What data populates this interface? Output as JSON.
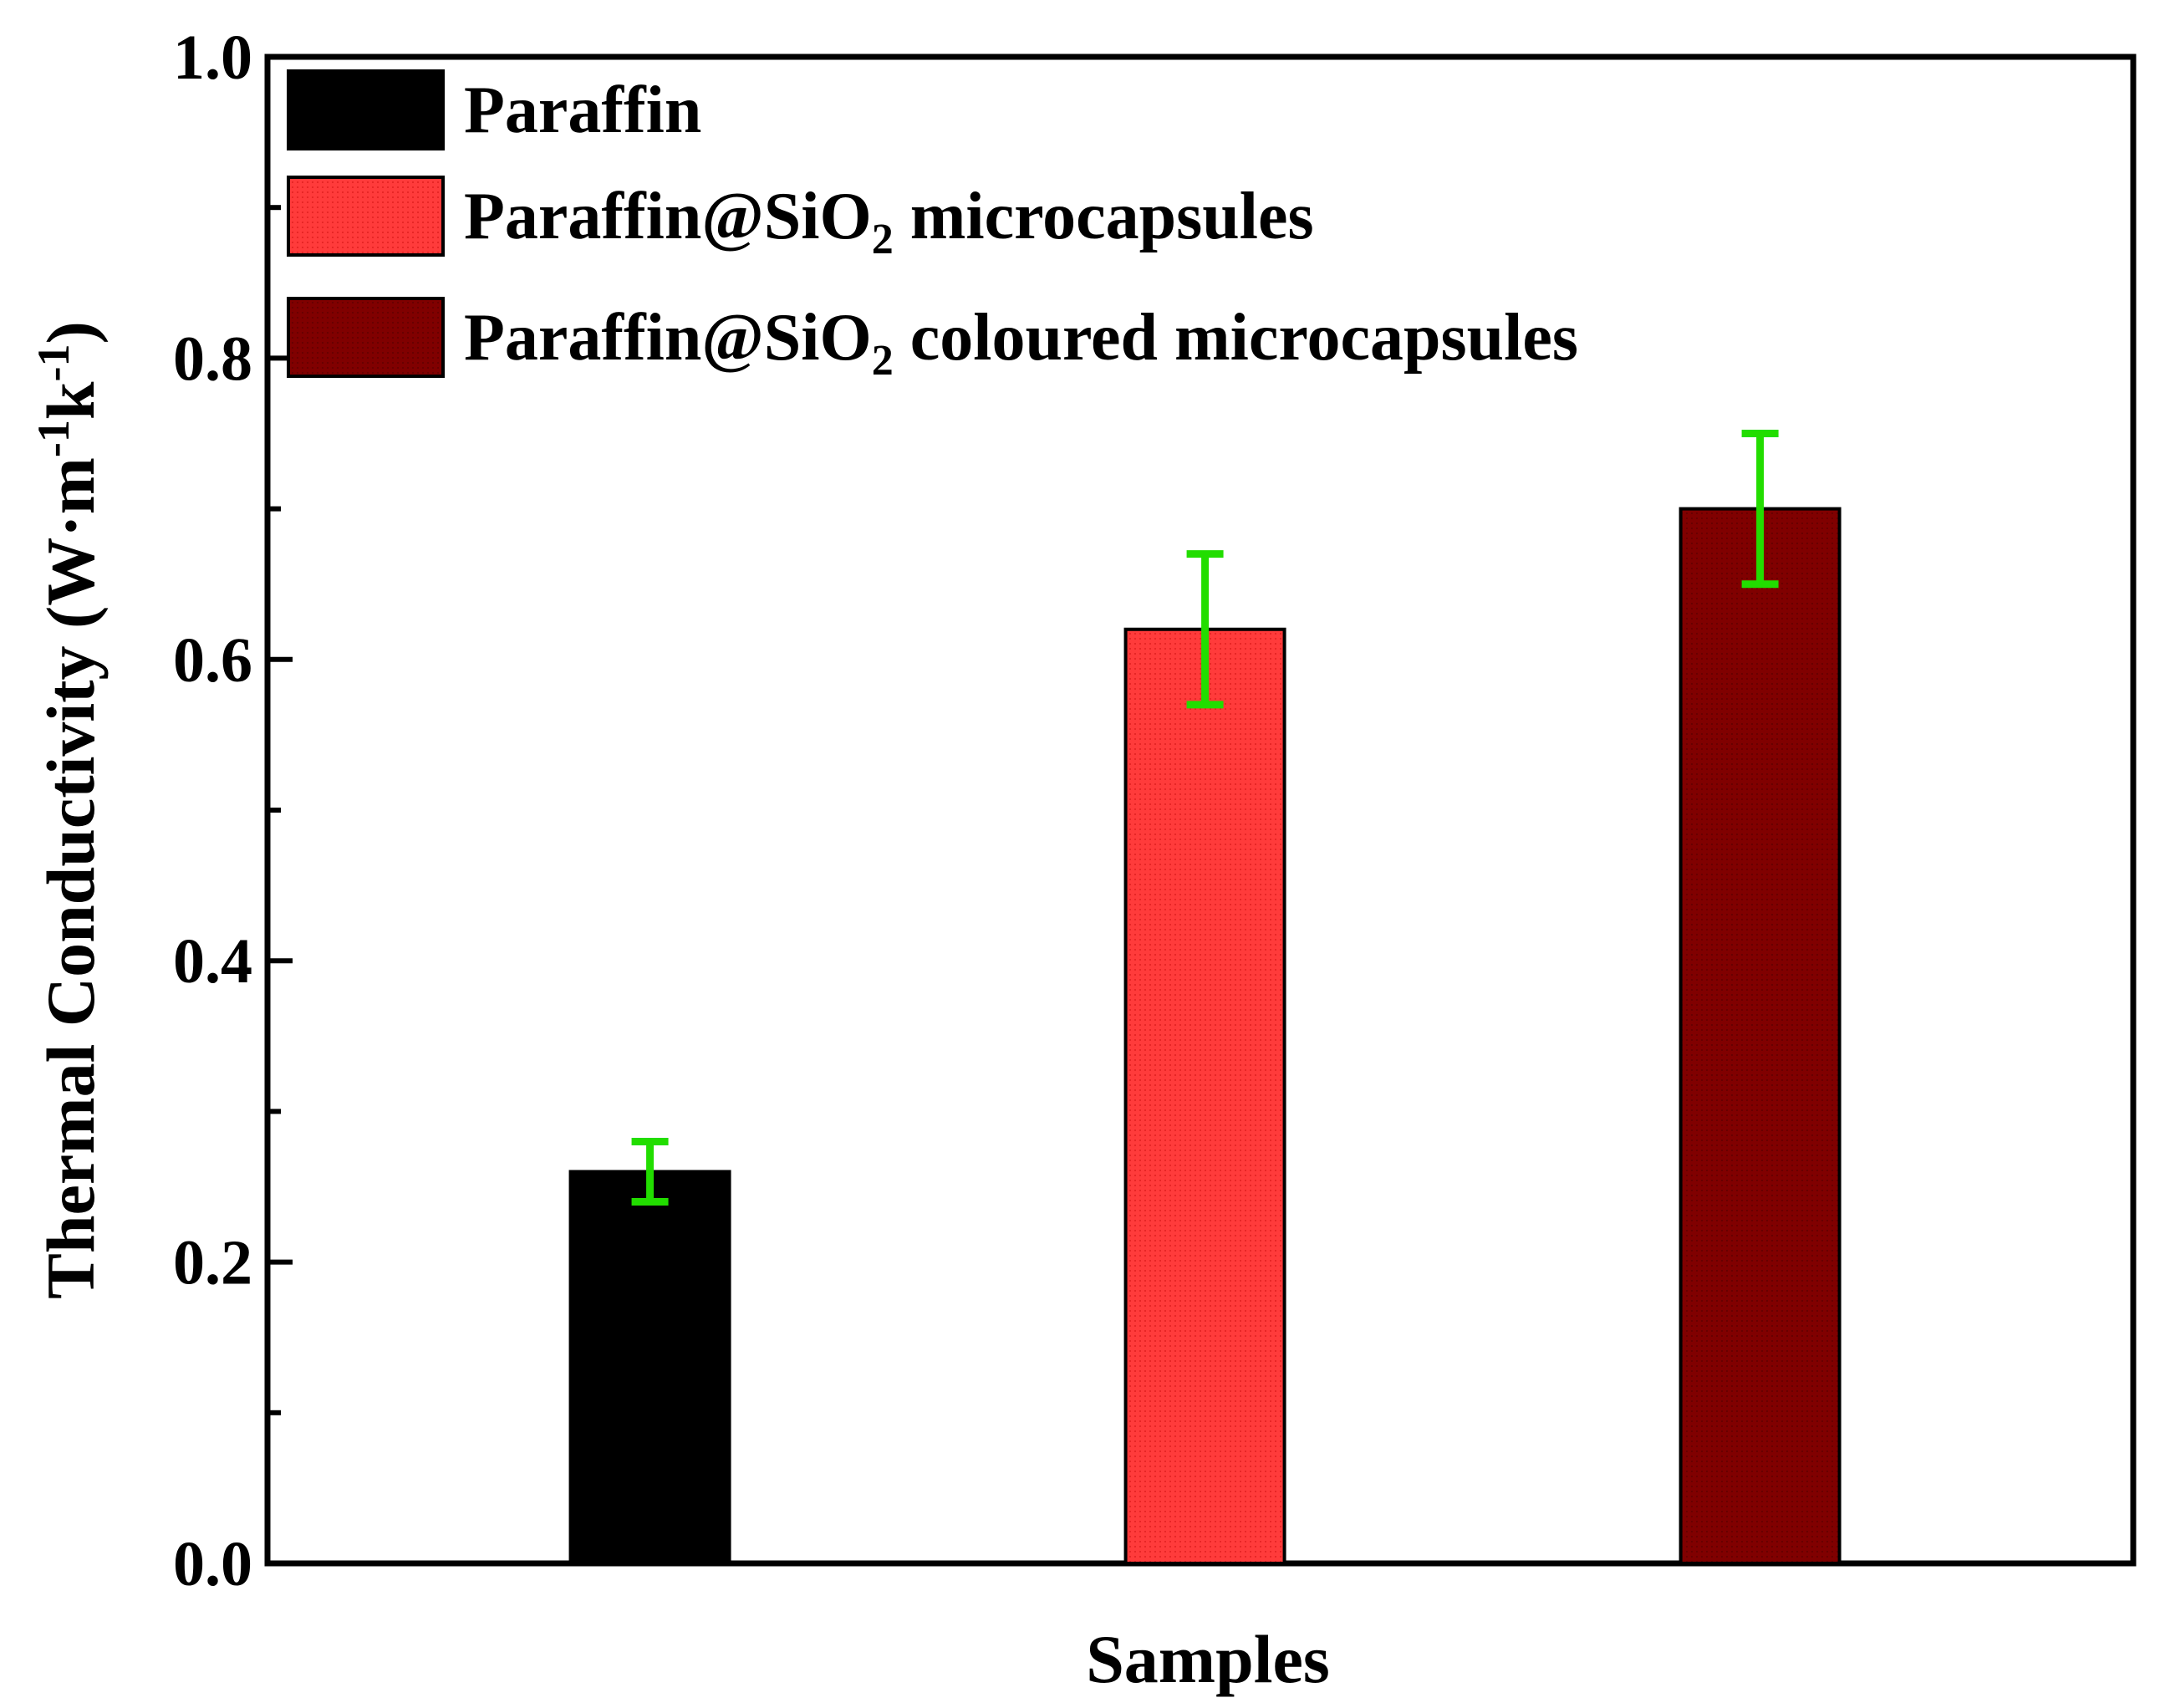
{
  "chart_data": {
    "type": "bar",
    "title": "",
    "xlabel": "Samples",
    "ylabel": {
      "main": "Thermal Conductivity (W·m",
      "exp1": "-1",
      "mid": "k",
      "exp2": "-1",
      "close": ")"
    },
    "ylim": [
      0,
      1.0
    ],
    "y_ticks": [
      "0.0",
      "0.2",
      "0.4",
      "0.6",
      "0.8",
      "1.0"
    ],
    "y_tick_values": [
      0.0,
      0.2,
      0.4,
      0.6,
      0.8,
      1.0
    ],
    "legend_position": "top-left",
    "series": [
      {
        "name": "Paraffin",
        "legend": {
          "pre": "Paraffin",
          "sub": "",
          "post": ""
        },
        "value": 0.26,
        "error": 0.02,
        "color": "#000000",
        "pattern": "solid"
      },
      {
        "name": "Paraffin@SiO2 microcapsules",
        "legend": {
          "pre": "Paraffin@SiO",
          "sub": "2",
          "post": " microcapsules"
        },
        "value": 0.62,
        "error": 0.05,
        "color": "#ff3b3b",
        "pattern": "dotted"
      },
      {
        "name": "Paraffin@SiO2 coloured microcapsules",
        "legend": {
          "pre": "Paraffin@SiO",
          "sub": "2",
          "post": " coloured microcapsules"
        },
        "value": 0.7,
        "error": 0.05,
        "color": "#800000",
        "pattern": "dotted"
      }
    ],
    "error_bar_color": "#22dd00"
  }
}
